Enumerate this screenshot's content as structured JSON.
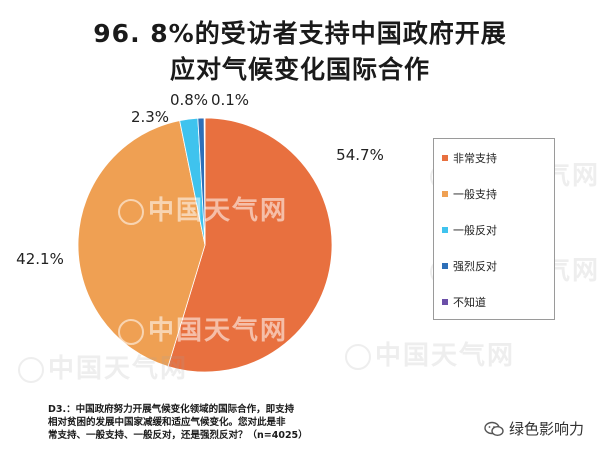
{
  "title": {
    "line1": "96. 8%的受访者支持中国政府开展",
    "line2": "应对气候变化国际合作"
  },
  "chart_data": {
    "type": "pie",
    "title": "96. 8%的受访者支持中国政府开展应对气候变化国际合作",
    "slices": [
      {
        "label": "非常支持",
        "value": 54.7,
        "display": "54.7%",
        "color": "#E8703F"
      },
      {
        "label": "一般支持",
        "value": 42.1,
        "display": "42.1%",
        "color": "#EFA053"
      },
      {
        "label": "一般反对",
        "value": 2.3,
        "display": "2.3%",
        "color": "#3FC3EE"
      },
      {
        "label": "强烈反对",
        "value": 0.8,
        "display": "0.8%",
        "color": "#2E6FB8"
      },
      {
        "label": "不知道",
        "value": 0.1,
        "display": "0.1%",
        "color": "#6B4FA8"
      }
    ],
    "legend_position": "right"
  },
  "watermark": {
    "text": "中国天气网"
  },
  "footnote": {
    "line1": "D3.：中国政府努力开展气候变化领域的国际合作，即支持",
    "line2": "相对贫困的发展中国家减缓和适应气候变化。您对此是非",
    "line3": "常支持、一般支持、一般反对，还是强烈反对？（n=4025）"
  },
  "wechat": {
    "account": "绿色影响力",
    "icon": "wechat-icon"
  }
}
